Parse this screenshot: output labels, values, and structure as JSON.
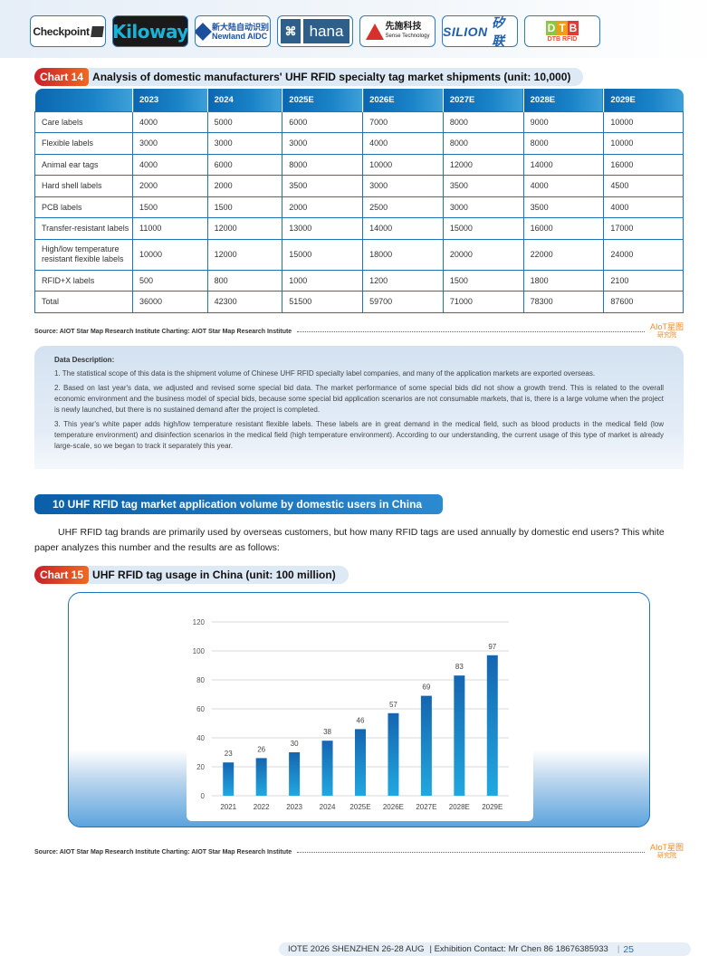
{
  "logos": [
    {
      "id": "checkpoint",
      "label": "Checkpoint"
    },
    {
      "id": "kiloway",
      "label": "Kiloway"
    },
    {
      "id": "newland",
      "label_cn": "新大陆自动识别",
      "label": "Newland AIDC"
    },
    {
      "id": "hana",
      "label": "hana"
    },
    {
      "id": "sense",
      "label_cn": "先施科技",
      "label": "Sense Technology"
    },
    {
      "id": "silion",
      "label": "SILION",
      "label_cn": "矽联"
    },
    {
      "id": "dtb",
      "label": "DTB",
      "sub": "DTB RFID"
    }
  ],
  "chart14": {
    "tag": "Chart 14",
    "title": "Analysis of domestic manufacturers' UHF RFID specialty tag market shipments (unit: 10,000)",
    "columns": [
      "",
      "2023",
      "2024",
      "2025E",
      "2026E",
      "2027E",
      "2028E",
      "2029E"
    ],
    "rows": [
      [
        "Care labels",
        "4000",
        "5000",
        "6000",
        "7000",
        "8000",
        "9000",
        "10000"
      ],
      [
        "Flexible labels",
        "3000",
        "3000",
        "3000",
        "4000",
        "8000",
        "8000",
        "10000"
      ],
      [
        "Animal ear tags",
        "4000",
        "6000",
        "8000",
        "10000",
        "12000",
        "14000",
        "16000"
      ],
      [
        "Hard shell labels",
        "2000",
        "2000",
        "3500",
        "3000",
        "3500",
        "4000",
        "4500"
      ],
      [
        "PCB labels",
        "1500",
        "1500",
        "2000",
        "2500",
        "3000",
        "3500",
        "4000"
      ],
      [
        "Transfer-resistant labels",
        "11000",
        "12000",
        "13000",
        "14000",
        "15000",
        "16000",
        "17000"
      ],
      [
        "High/low temperature resistant flexible labels",
        "10000",
        "12000",
        "15000",
        "18000",
        "20000",
        "22000",
        "24000"
      ],
      [
        "RFID+X labels",
        "500",
        "800",
        "1000",
        "1200",
        "1500",
        "1800",
        "2100"
      ],
      [
        "Total",
        "36000",
        "42300",
        "51500",
        "59700",
        "71000",
        "78300",
        "87600"
      ]
    ],
    "source": "Source: AIOT Star Map Research Institute  Charting: AIOT Star Map Research Institute"
  },
  "aiot_logo": {
    "main": "AIoT星图",
    "sub": "研究院"
  },
  "data_description": {
    "title": "Data Description:",
    "items": [
      "1. The statistical scope of this data is the shipment volume of Chinese UHF RFID specialty label companies, and many of the application markets are exported overseas.",
      "2. Based on last year's data, we adjusted and revised some special bid data. The market performance of some special bids did not show a growth trend. This is related to the overall economic environment and the business model of special bids, because some special bid application scenarios are not consumable markets, that is, there is a large volume when the project is newly launched, but there is no sustained demand after the project is completed.",
      "3. This year's white paper adds high/low temperature resistant flexible labels. These labels are in great demand in the medical field, such as blood products in the medical field (low temperature environment) and disinfection scenarios in the medical field (high temperature environment). According to our understanding, the current usage of this type of market is already large-scale, so we began to track it separately this year."
    ]
  },
  "section": {
    "heading": "10 UHF RFID tag market application volume by domestic users in China",
    "intro": "UHF RFID tag brands are primarily used by overseas customers, but how many RFID tags are used annually by domestic end users? This white paper analyzes this number and the results are as follows:"
  },
  "chart15": {
    "tag": "Chart 15",
    "title": "UHF RFID tag usage in China (unit: 100 million)",
    "source": "Source: AIOT Star Map Research Institute  Charting: AIOT Star Map Research Institute"
  },
  "chart_data": [
    {
      "type": "table",
      "title": "Analysis of domestic manufacturers' UHF RFID specialty tag market shipments (unit: 10,000)",
      "categories": [
        "2023",
        "2024",
        "2025E",
        "2026E",
        "2027E",
        "2028E",
        "2029E"
      ],
      "series": [
        {
          "name": "Care labels",
          "values": [
            4000,
            5000,
            6000,
            7000,
            8000,
            9000,
            10000
          ]
        },
        {
          "name": "Flexible labels",
          "values": [
            3000,
            3000,
            3000,
            4000,
            8000,
            8000,
            10000
          ]
        },
        {
          "name": "Animal ear tags",
          "values": [
            4000,
            6000,
            8000,
            10000,
            12000,
            14000,
            16000
          ]
        },
        {
          "name": "Hard shell labels",
          "values": [
            2000,
            2000,
            3500,
            3000,
            3500,
            4000,
            4500
          ]
        },
        {
          "name": "PCB labels",
          "values": [
            1500,
            1500,
            2000,
            2500,
            3000,
            3500,
            4000
          ]
        },
        {
          "name": "Transfer-resistant labels",
          "values": [
            11000,
            12000,
            13000,
            14000,
            15000,
            16000,
            17000
          ]
        },
        {
          "name": "High/low temperature resistant flexible labels",
          "values": [
            10000,
            12000,
            15000,
            18000,
            20000,
            22000,
            24000
          ]
        },
        {
          "name": "RFID+X labels",
          "values": [
            500,
            800,
            1000,
            1200,
            1500,
            1800,
            2100
          ]
        },
        {
          "name": "Total",
          "values": [
            36000,
            42300,
            51500,
            59700,
            71000,
            78300,
            87600
          ]
        }
      ]
    },
    {
      "type": "bar",
      "title": "UHF RFID tag usage in China (unit: 100 million)",
      "categories": [
        "2021",
        "2022",
        "2023",
        "2024",
        "2025E",
        "2026E",
        "2027E",
        "2028E",
        "2029E"
      ],
      "values": [
        23,
        26,
        30,
        38,
        46,
        57,
        69,
        83,
        97
      ],
      "xlabel": "",
      "ylabel": "",
      "ylim": [
        0,
        120
      ],
      "yticks": [
        0,
        20,
        40,
        60,
        80,
        100,
        120
      ],
      "grid": true,
      "data_labels": true,
      "bar_color_top": "#1565b0",
      "bar_color_bottom": "#21a8e0"
    }
  ],
  "footer": {
    "event": "IOTE 2026 SHENZHEN 26-28 AUG",
    "contact": "| Exhibition Contact:  Mr Chen 86 18676385933",
    "page": "25"
  }
}
